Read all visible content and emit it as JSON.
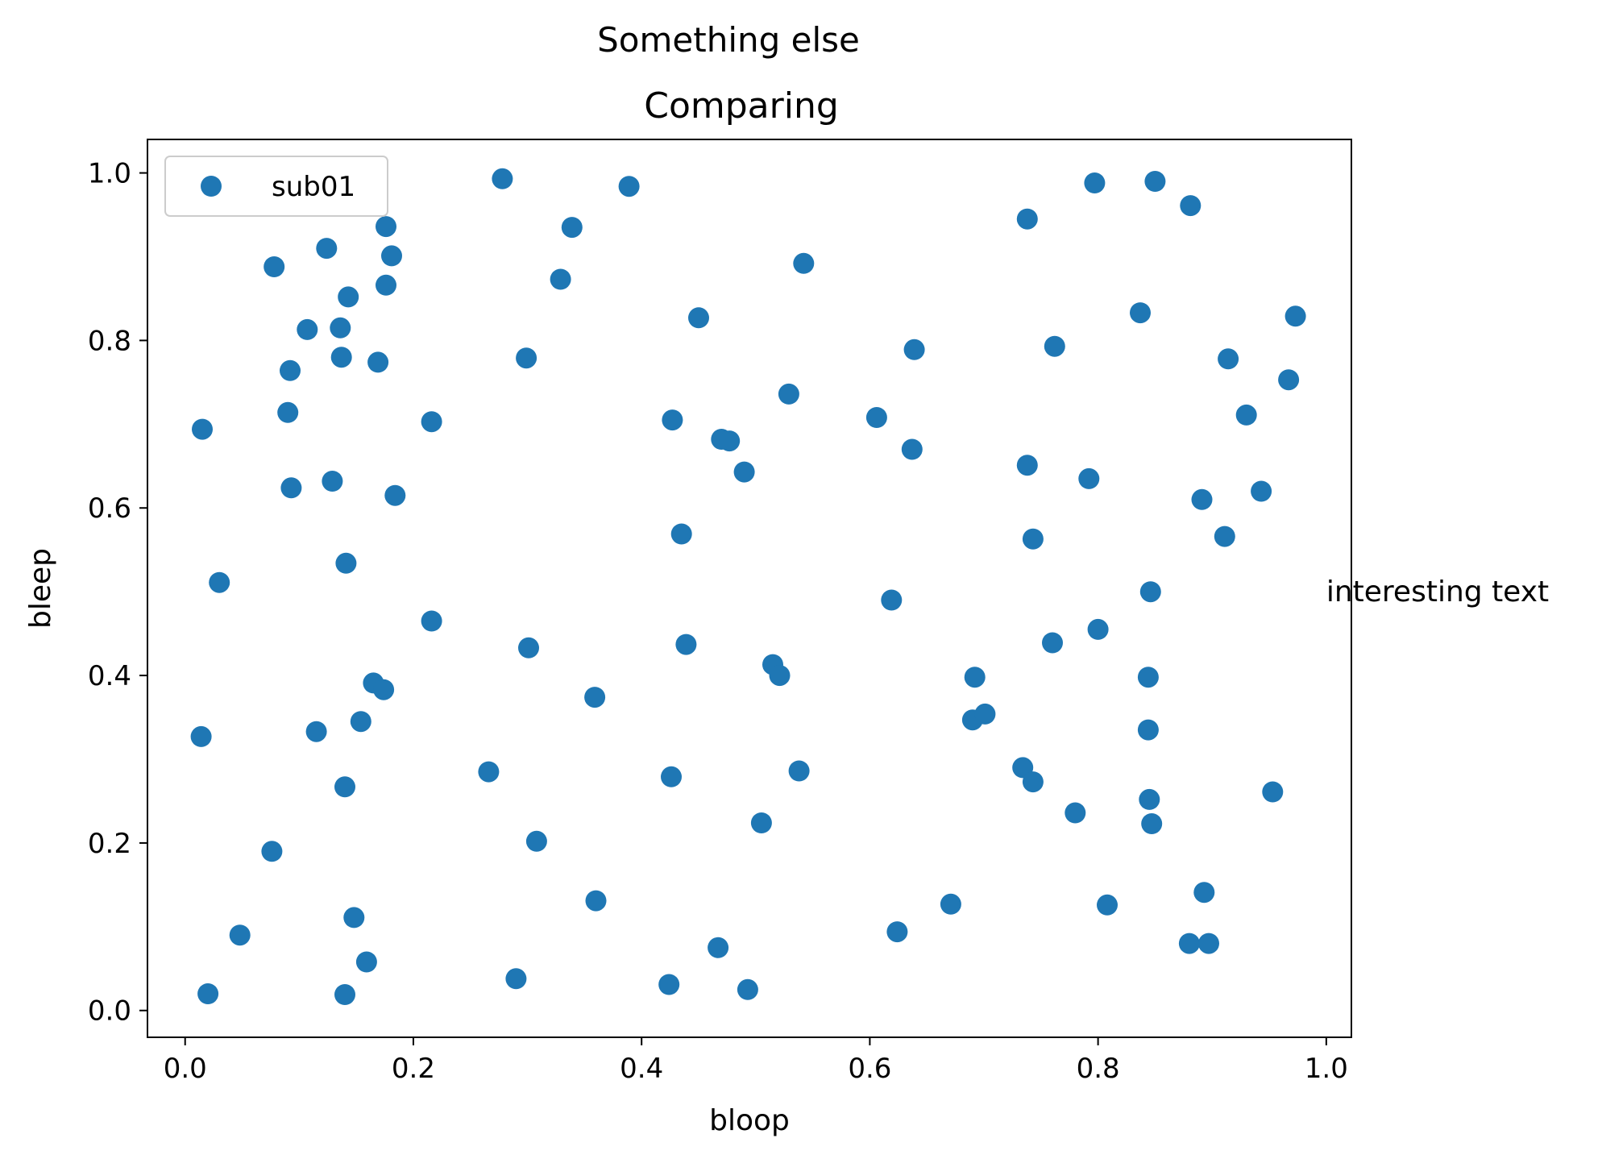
{
  "figure": {
    "suptitle": "Something else"
  },
  "chart_data": {
    "type": "scatter",
    "title": "Comparing",
    "xlabel": "bloop",
    "ylabel": "bleep",
    "xlim": [
      -0.033,
      1.022
    ],
    "ylim": [
      -0.032,
      1.04
    ],
    "xticks": [
      0.0,
      0.2,
      0.4,
      0.6,
      0.8,
      1.0
    ],
    "xtick_labels": [
      "0.0",
      "0.2",
      "0.4",
      "0.6",
      "0.8",
      "1.0"
    ],
    "yticks": [
      0.0,
      0.2,
      0.4,
      0.6,
      0.8,
      1.0
    ],
    "ytick_labels": [
      "0.0",
      "0.2",
      "0.4",
      "0.6",
      "0.8",
      "1.0"
    ],
    "grid": false,
    "legend_position": "upper-left",
    "annotation": {
      "text": "interesting text",
      "x": 1.0,
      "y": 0.5
    },
    "series": [
      {
        "name": "sub01",
        "color": "#1f77b4",
        "points": [
          [
            0.015,
            0.694
          ],
          [
            0.014,
            0.327
          ],
          [
            0.02,
            0.02
          ],
          [
            0.03,
            0.511
          ],
          [
            0.048,
            0.09
          ],
          [
            0.076,
            0.19
          ],
          [
            0.078,
            0.888
          ],
          [
            0.09,
            0.714
          ],
          [
            0.092,
            0.764
          ],
          [
            0.093,
            0.624
          ],
          [
            0.107,
            0.813
          ],
          [
            0.115,
            0.333
          ],
          [
            0.124,
            0.91
          ],
          [
            0.129,
            0.632
          ],
          [
            0.136,
            0.815
          ],
          [
            0.137,
            0.78
          ],
          [
            0.14,
            0.267
          ],
          [
            0.141,
            0.534
          ],
          [
            0.14,
            0.019
          ],
          [
            0.143,
            0.852
          ],
          [
            0.148,
            0.111
          ],
          [
            0.154,
            0.345
          ],
          [
            0.159,
            0.058
          ],
          [
            0.165,
            0.391
          ],
          [
            0.169,
            0.774
          ],
          [
            0.174,
            0.383
          ],
          [
            0.176,
            0.866
          ],
          [
            0.176,
            0.936
          ],
          [
            0.181,
            0.901
          ],
          [
            0.184,
            0.615
          ],
          [
            0.216,
            0.703
          ],
          [
            0.216,
            0.465
          ],
          [
            0.266,
            0.285
          ],
          [
            0.278,
            0.993
          ],
          [
            0.29,
            0.038
          ],
          [
            0.299,
            0.779
          ],
          [
            0.301,
            0.433
          ],
          [
            0.308,
            0.202
          ],
          [
            0.329,
            0.873
          ],
          [
            0.339,
            0.935
          ],
          [
            0.359,
            0.374
          ],
          [
            0.36,
            0.131
          ],
          [
            0.389,
            0.984
          ],
          [
            0.424,
            0.031
          ],
          [
            0.426,
            0.279
          ],
          [
            0.427,
            0.705
          ],
          [
            0.435,
            0.569
          ],
          [
            0.439,
            0.437
          ],
          [
            0.45,
            0.827
          ],
          [
            0.467,
            0.075
          ],
          [
            0.47,
            0.682
          ],
          [
            0.477,
            0.68
          ],
          [
            0.49,
            0.643
          ],
          [
            0.493,
            0.025
          ],
          [
            0.505,
            0.224
          ],
          [
            0.515,
            0.413
          ],
          [
            0.521,
            0.4
          ],
          [
            0.529,
            0.736
          ],
          [
            0.538,
            0.286
          ],
          [
            0.542,
            0.892
          ],
          [
            0.606,
            0.708
          ],
          [
            0.619,
            0.49
          ],
          [
            0.624,
            0.094
          ],
          [
            0.637,
            0.67
          ],
          [
            0.639,
            0.789
          ],
          [
            0.671,
            0.127
          ],
          [
            0.69,
            0.347
          ],
          [
            0.692,
            0.398
          ],
          [
            0.701,
            0.354
          ],
          [
            0.734,
            0.29
          ],
          [
            0.738,
            0.651
          ],
          [
            0.738,
            0.945
          ],
          [
            0.743,
            0.563
          ],
          [
            0.743,
            0.273
          ],
          [
            0.76,
            0.439
          ],
          [
            0.762,
            0.793
          ],
          [
            0.78,
            0.236
          ],
          [
            0.792,
            0.635
          ],
          [
            0.797,
            0.988
          ],
          [
            0.8,
            0.455
          ],
          [
            0.808,
            0.126
          ],
          [
            0.837,
            0.833
          ],
          [
            0.844,
            0.398
          ],
          [
            0.844,
            0.335
          ],
          [
            0.845,
            0.252
          ],
          [
            0.846,
            0.5
          ],
          [
            0.847,
            0.223
          ],
          [
            0.85,
            0.99
          ],
          [
            0.88,
            0.08
          ],
          [
            0.881,
            0.961
          ],
          [
            0.891,
            0.61
          ],
          [
            0.893,
            0.141
          ],
          [
            0.897,
            0.08
          ],
          [
            0.911,
            0.566
          ],
          [
            0.914,
            0.778
          ],
          [
            0.93,
            0.711
          ],
          [
            0.943,
            0.62
          ],
          [
            0.953,
            0.261
          ],
          [
            0.967,
            0.753
          ],
          [
            0.973,
            0.829
          ]
        ]
      }
    ]
  }
}
